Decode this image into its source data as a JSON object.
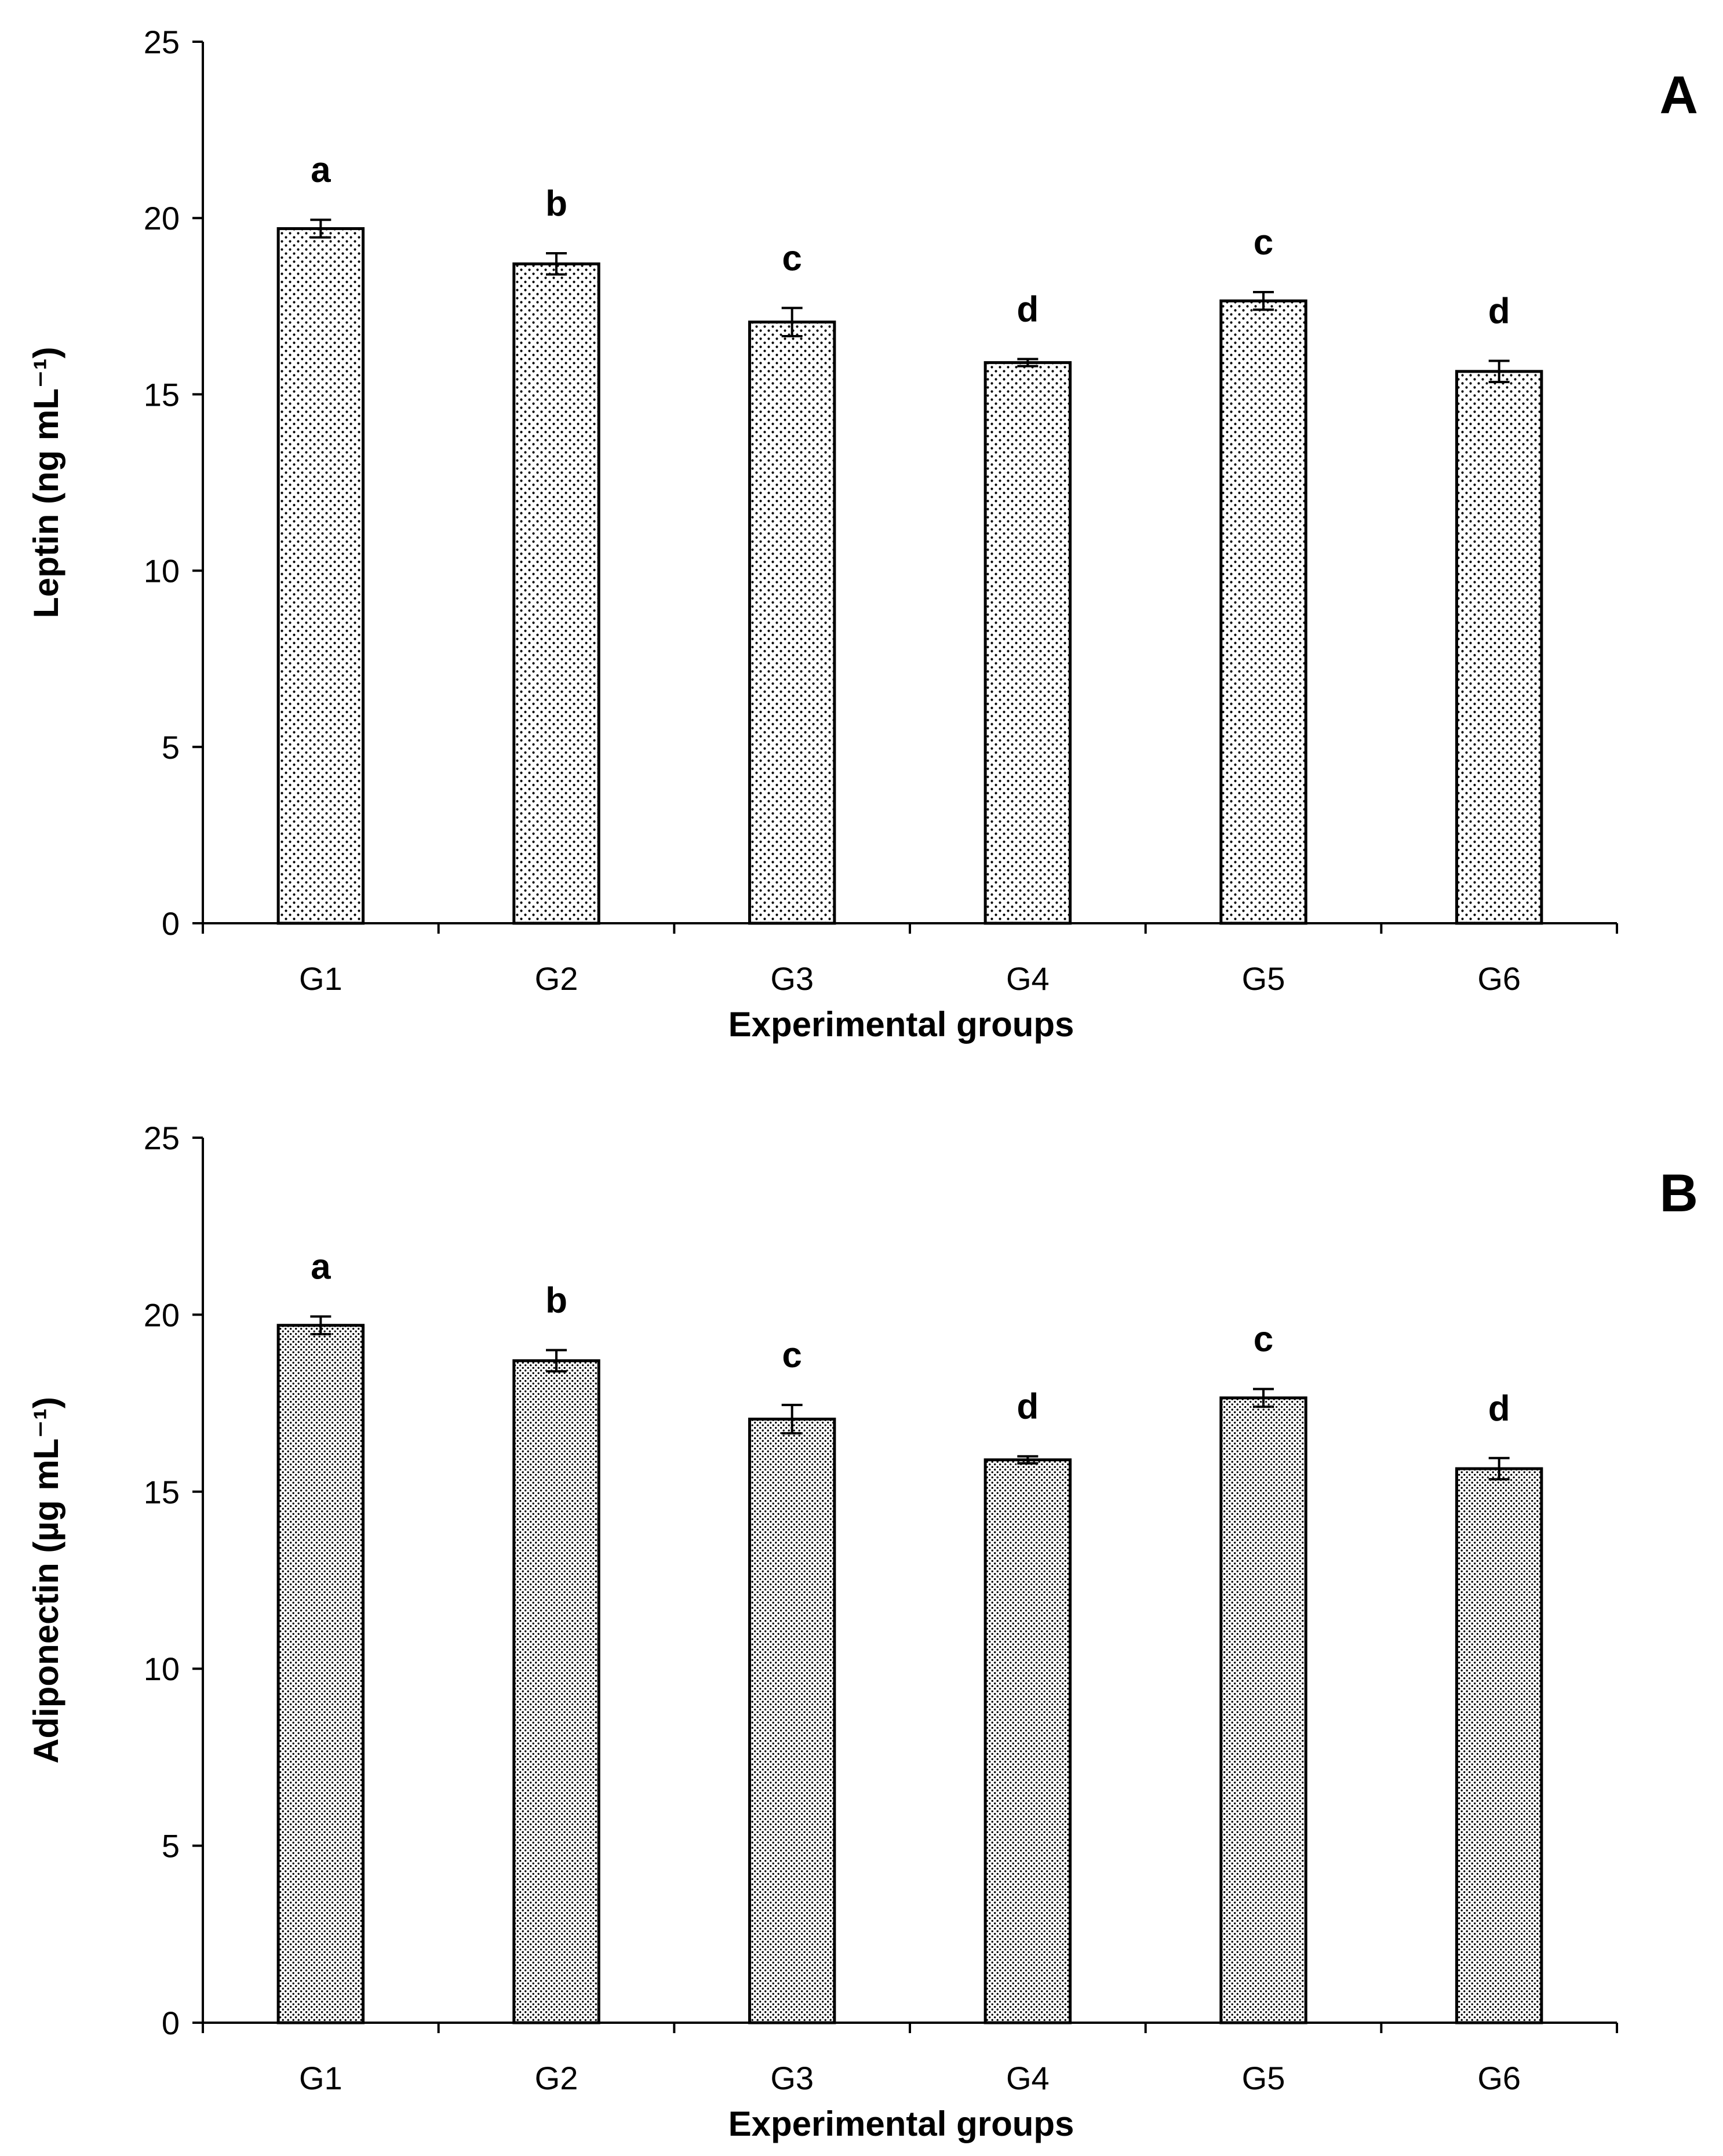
{
  "chart_data": [
    {
      "type": "bar",
      "panel_label": "A",
      "categories": [
        "G1",
        "G2",
        "G3",
        "G4",
        "G5",
        "G6"
      ],
      "values": [
        19.7,
        18.7,
        17.05,
        15.9,
        17.65,
        15.65
      ],
      "errors": [
        0.25,
        0.3,
        0.4,
        0.1,
        0.25,
        0.3
      ],
      "significance": [
        "a",
        "b",
        "c",
        "d",
        "c",
        "d"
      ],
      "xlabel": "Experimental groups",
      "ylabel": "Leptin (ng mL⁻¹)",
      "ylim": [
        0,
        25
      ],
      "yticks": [
        0,
        5,
        10,
        15,
        20,
        25
      ],
      "grid": false,
      "fill_pattern": "sparse-dots"
    },
    {
      "type": "bar",
      "panel_label": "B",
      "categories": [
        "G1",
        "G2",
        "G3",
        "G4",
        "G5",
        "G6"
      ],
      "values": [
        19.7,
        18.7,
        17.05,
        15.9,
        17.65,
        15.65
      ],
      "errors": [
        0.25,
        0.3,
        0.4,
        0.1,
        0.25,
        0.3
      ],
      "significance": [
        "a",
        "b",
        "c",
        "d",
        "c",
        "d"
      ],
      "xlabel": "Experimental groups",
      "ylabel": "Adiponectin (µg mL⁻¹)",
      "ylim": [
        0,
        25
      ],
      "yticks": [
        0,
        5,
        10,
        15,
        20,
        25
      ],
      "grid": false,
      "fill_pattern": "dense-dots"
    }
  ]
}
